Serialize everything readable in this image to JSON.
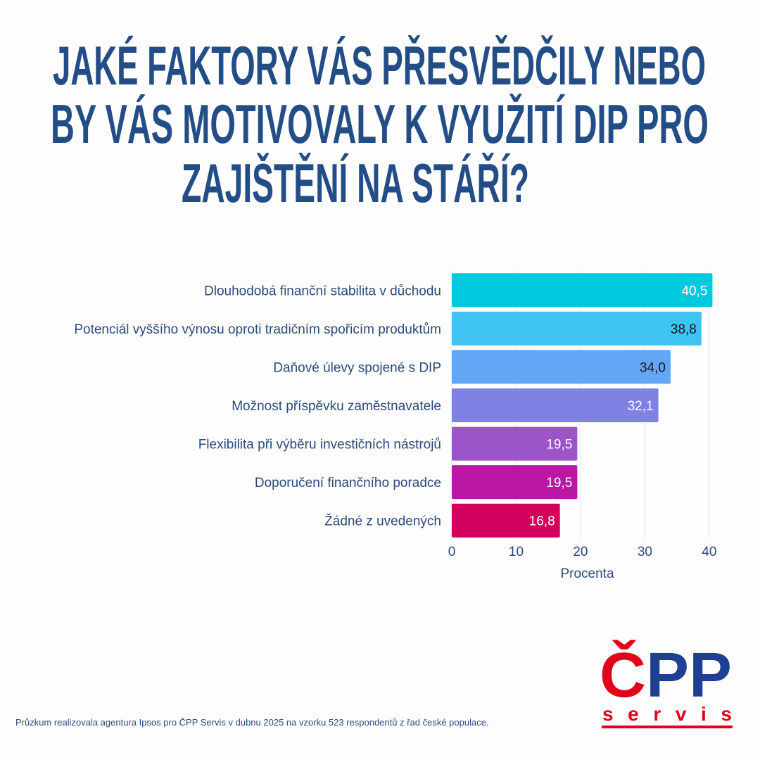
{
  "chart_data": {
    "type": "bar",
    "orientation": "horizontal",
    "title": [
      "JAKÉ FAKTORY VÁS PŘESVĚDČILY NEBO",
      "BY VÁS MOTIVOVALY K VYUŽITÍ DIP PRO",
      "ZAJIŠTĚNÍ NA STÁŘÍ?"
    ],
    "categories": [
      "Dlouhodobá finanční stabilita v důchodu",
      "Potenciál vyššího výnosu oproti tradičním spořicím produktům",
      "Daňové úlevy spojené s DIP",
      "Možnost příspěvku zaměstnavatele",
      "Flexibilita při výběru investičních nástrojů",
      "Doporučení finančního poradce",
      "Žádné z uvedených"
    ],
    "values": [
      40.5,
      38.8,
      34.0,
      32.1,
      19.5,
      19.5,
      16.8
    ],
    "value_labels": [
      "40,5",
      "38,8",
      "34,0",
      "32,1",
      "19,5",
      "19,5",
      "16,8"
    ],
    "colors": [
      "#00c9dd",
      "#3fc3f2",
      "#62a6f6",
      "#7f82e3",
      "#9c55c9",
      "#bb17a5",
      "#d2005c"
    ],
    "xlim": [
      0,
      41
    ],
    "xticks": [
      0,
      10,
      20,
      30,
      40
    ],
    "xlabel": "Procenta",
    "grid": true
  },
  "footnote": "Průzkum realizovala agentura Ipsos pro ČPP Servis v dubnu 2025 na vzorku 523 respondentů z řad české populace.",
  "logo": {
    "letter": "Č",
    "rest": "PP",
    "tagline": "servis"
  }
}
